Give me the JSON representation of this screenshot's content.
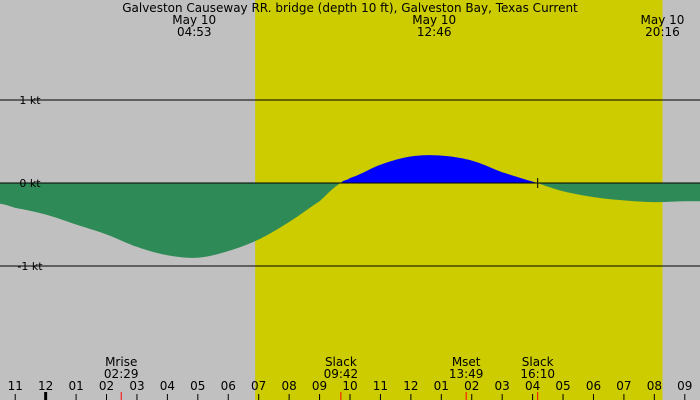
{
  "chart_data": {
    "type": "area",
    "title": "Galveston Causeway RR. bridge (depth 10 ft), Galveston Bay, Texas Current",
    "xlabel": "",
    "ylabel": "",
    "x_unit": "hours since midnight May 10 (UTC-5 local)",
    "xlim": [
      -1.5,
      21.5
    ],
    "ylim": [
      -2.2,
      2.2
    ],
    "y_ticks": [
      {
        "value": 1,
        "label": "1 kt"
      },
      {
        "value": 0,
        "label": "0 kt"
      },
      {
        "value": -1,
        "label": "-1 kt"
      }
    ],
    "hour_labels": [
      {
        "hour": -1,
        "label": "11"
      },
      {
        "hour": 0,
        "label": "12"
      },
      {
        "hour": 1,
        "label": "01"
      },
      {
        "hour": 2,
        "label": "02"
      },
      {
        "hour": 3,
        "label": "03"
      },
      {
        "hour": 4,
        "label": "04"
      },
      {
        "hour": 5,
        "label": "05"
      },
      {
        "hour": 6,
        "label": "06"
      },
      {
        "hour": 7,
        "label": "07"
      },
      {
        "hour": 8,
        "label": "08"
      },
      {
        "hour": 9,
        "label": "09"
      },
      {
        "hour": 10,
        "label": "10"
      },
      {
        "hour": 11,
        "label": "11"
      },
      {
        "hour": 12,
        "label": "12"
      },
      {
        "hour": 13,
        "label": "01"
      },
      {
        "hour": 14,
        "label": "02"
      },
      {
        "hour": 15,
        "label": "03"
      },
      {
        "hour": 16,
        "label": "04"
      },
      {
        "hour": 17,
        "label": "05"
      },
      {
        "hour": 18,
        "label": "06"
      },
      {
        "hour": 19,
        "label": "07"
      },
      {
        "hour": 20,
        "label": "08"
      },
      {
        "hour": 21,
        "label": "09"
      }
    ],
    "daylight": {
      "start": 6.883,
      "end": 20.267
    },
    "top_labels": [
      {
        "hour": 4.883,
        "date": "May 10",
        "time": "04:53"
      },
      {
        "hour": 12.767,
        "date": "May 10",
        "time": "12:46"
      },
      {
        "hour": 20.267,
        "date": "May 10",
        "time": "20:16"
      }
    ],
    "events": [
      {
        "hour": 2.483,
        "name": "Mrise",
        "time": "02:29",
        "color": "#ff0000"
      },
      {
        "hour": 9.7,
        "name": "Slack",
        "time": "09:42",
        "color": "#ff0000"
      },
      {
        "hour": 13.817,
        "name": "Mset",
        "time": "13:49",
        "color": "#ff0000"
      },
      {
        "hour": 16.167,
        "name": "Slack",
        "time": "16:10",
        "color": "#ff0000"
      }
    ],
    "marker_hour": 16.167,
    "current_knots": {
      "x": [
        -1.5,
        -1,
        0,
        1,
        2,
        3,
        4,
        5,
        6,
        7,
        8,
        9,
        9.7,
        10,
        11,
        12,
        13,
        14,
        15,
        16.167,
        17,
        18,
        19,
        20,
        21,
        21.5
      ],
      "y": [
        -0.25,
        -0.3,
        -0.38,
        -0.5,
        -0.62,
        -0.77,
        -0.87,
        -0.9,
        -0.82,
        -0.68,
        -0.47,
        -0.22,
        0,
        0.06,
        0.22,
        0.32,
        0.33,
        0.27,
        0.13,
        0,
        -0.1,
        -0.17,
        -0.21,
        -0.23,
        -0.22,
        -0.22
      ]
    },
    "colors": {
      "night": "#c0c0c0",
      "day": "#cccc00",
      "flood": "#0000ff",
      "ebb": "#2e8b57",
      "grid": "#000000"
    }
  }
}
